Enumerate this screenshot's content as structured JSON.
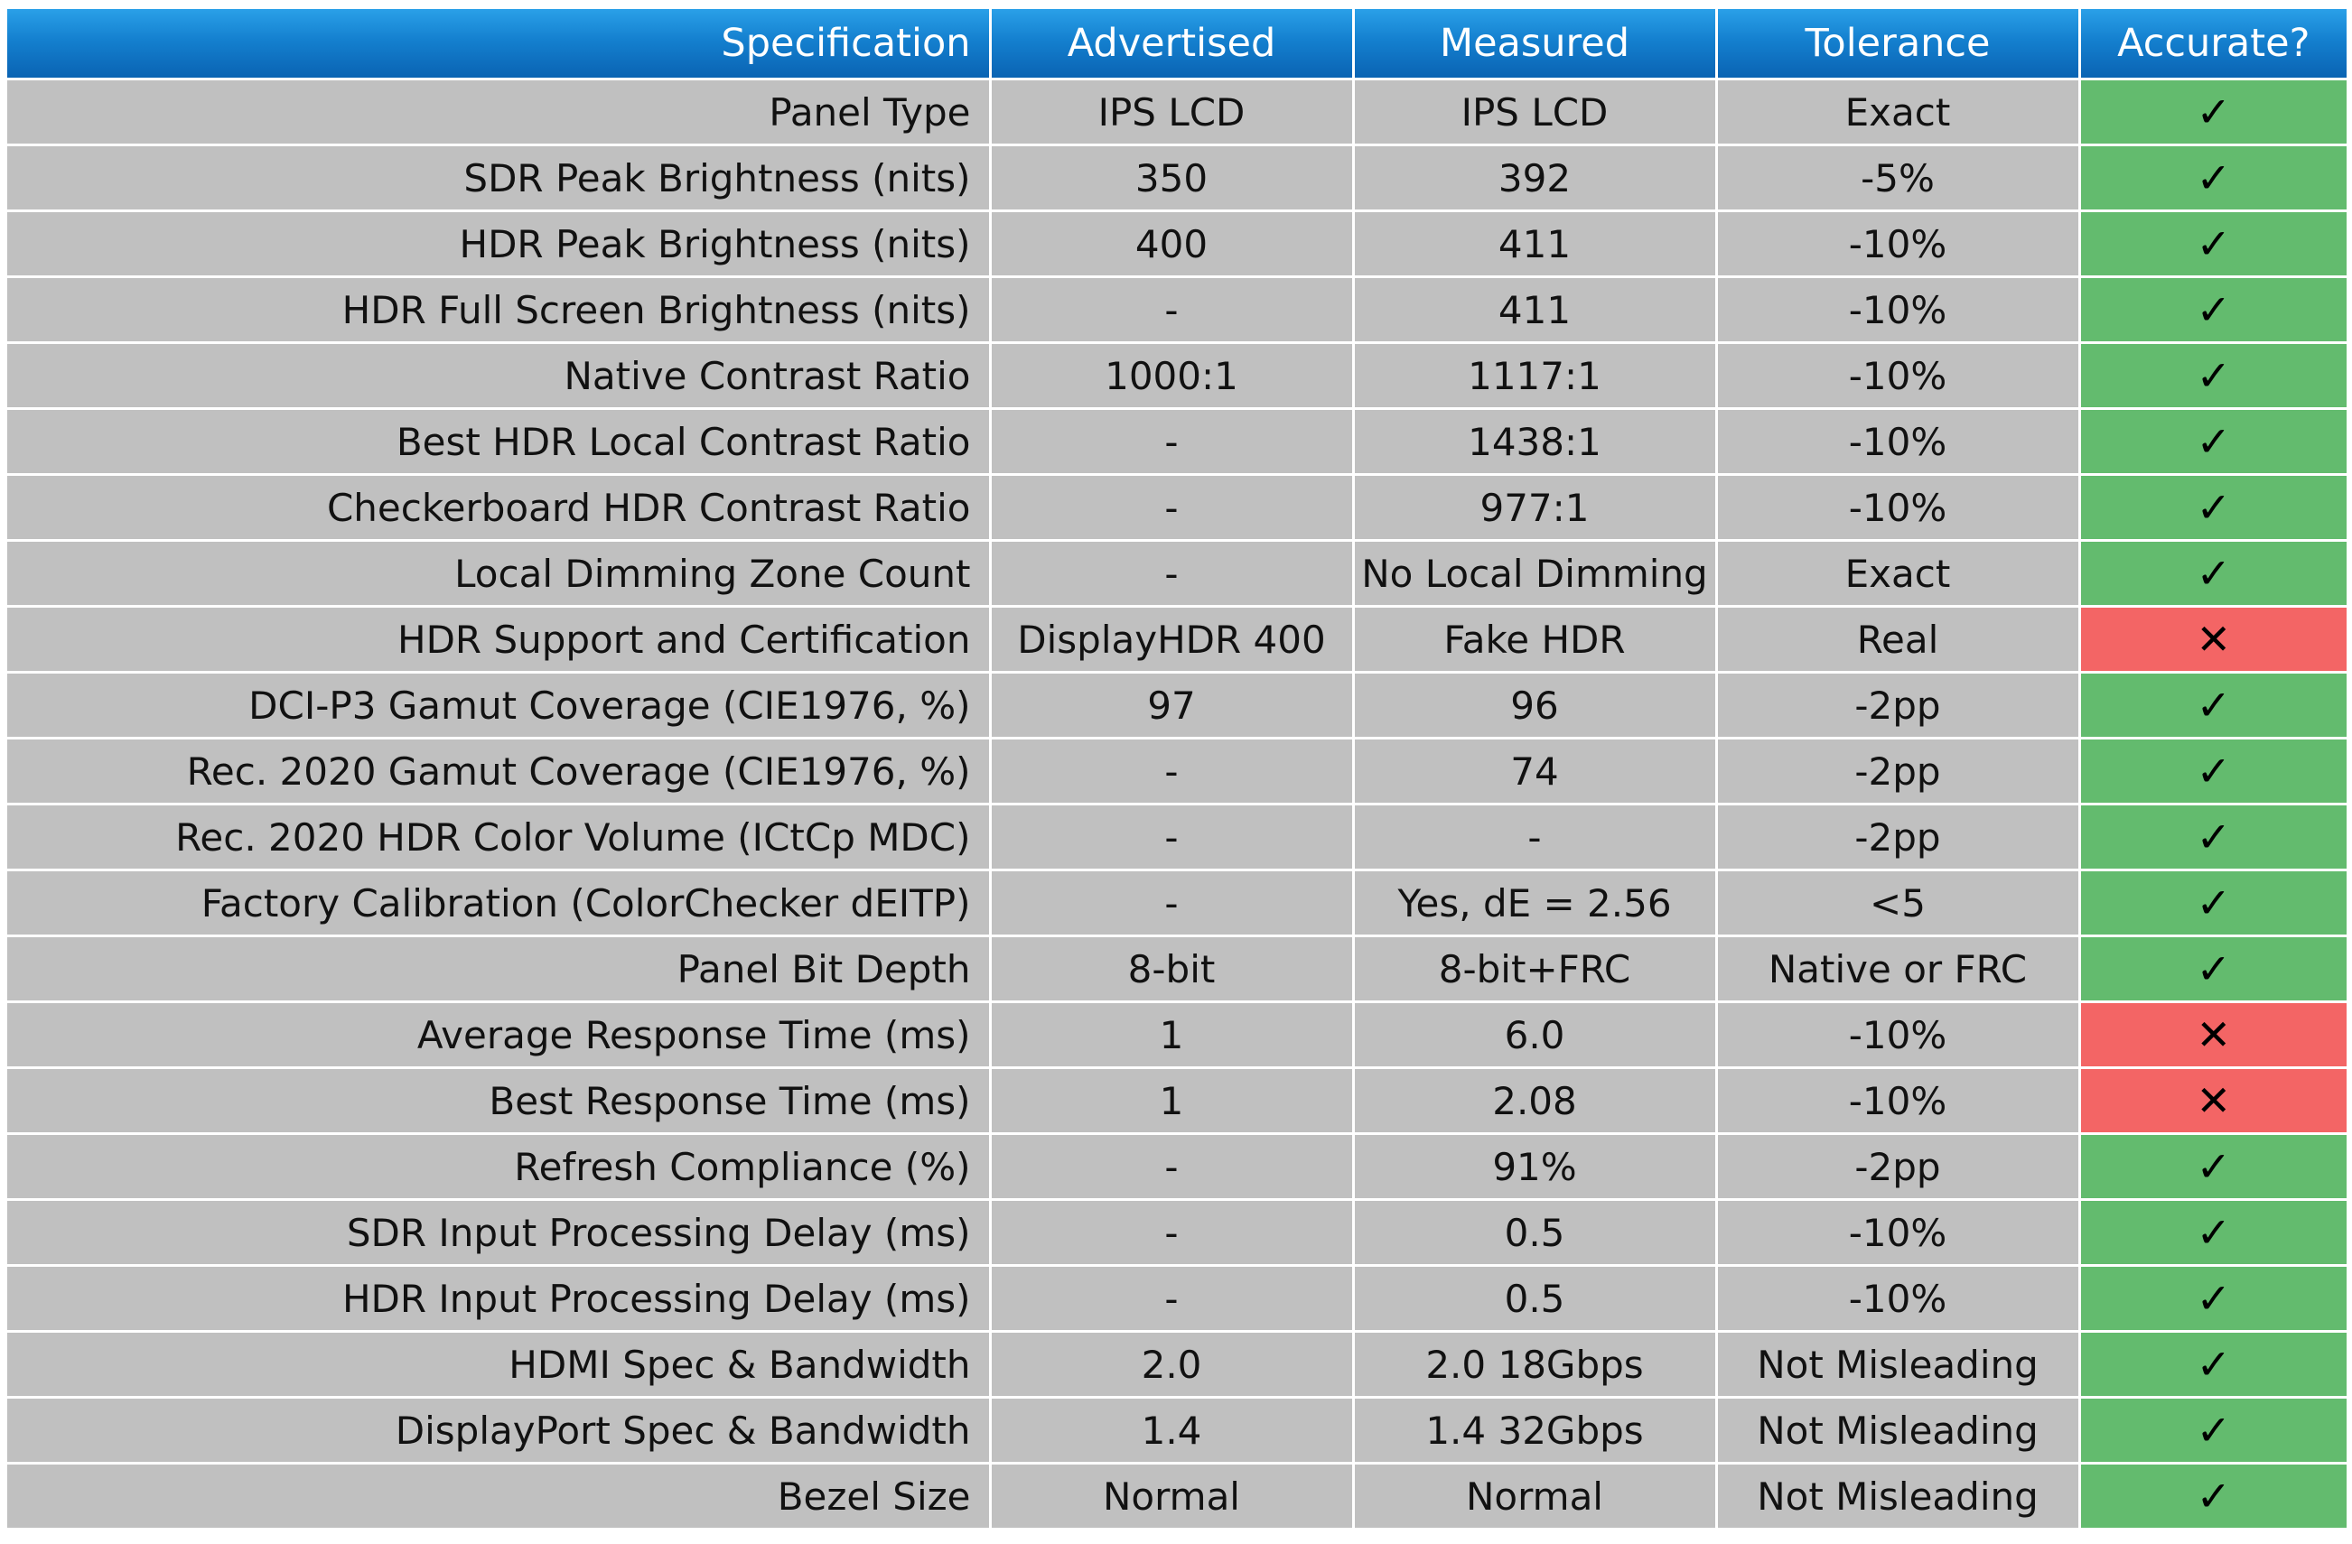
{
  "columns": {
    "spec": "Specification",
    "advertised": "Advertised",
    "measured": "Measured",
    "tolerance": "Tolerance",
    "accurate": "Accurate?"
  },
  "status_symbols": {
    "pass": "✓",
    "fail": "✕"
  },
  "status_colors": {
    "pass": "#63bb6e",
    "fail": "#f36565",
    "header": "#1480cf",
    "row": "#c0c0c0"
  },
  "rows": [
    {
      "spec": "Panel Type",
      "advertised": "IPS LCD",
      "measured": "IPS LCD",
      "tolerance": "Exact",
      "accurate": "pass"
    },
    {
      "spec": "SDR Peak Brightness (nits)",
      "advertised": "350",
      "measured": "392",
      "tolerance": "-5%",
      "accurate": "pass"
    },
    {
      "spec": "HDR Peak Brightness (nits)",
      "advertised": "400",
      "measured": "411",
      "tolerance": "-10%",
      "accurate": "pass"
    },
    {
      "spec": "HDR Full Screen Brightness (nits)",
      "advertised": "-",
      "measured": "411",
      "tolerance": "-10%",
      "accurate": "pass"
    },
    {
      "spec": "Native Contrast Ratio",
      "advertised": "1000:1",
      "measured": "1117:1",
      "tolerance": "-10%",
      "accurate": "pass"
    },
    {
      "spec": "Best HDR Local Contrast Ratio",
      "advertised": "-",
      "measured": "1438:1",
      "tolerance": "-10%",
      "accurate": "pass"
    },
    {
      "spec": "Checkerboard HDR Contrast Ratio",
      "advertised": "-",
      "measured": "977:1",
      "tolerance": "-10%",
      "accurate": "pass"
    },
    {
      "spec": "Local Dimming Zone Count",
      "advertised": "-",
      "measured": "No Local Dimming",
      "tolerance": "Exact",
      "accurate": "pass"
    },
    {
      "spec": "HDR Support and Certification",
      "advertised": "DisplayHDR 400",
      "measured": "Fake HDR",
      "tolerance": "Real",
      "accurate": "fail"
    },
    {
      "spec": "DCI-P3 Gamut Coverage (CIE1976, %)",
      "advertised": "97",
      "measured": "96",
      "tolerance": "-2pp",
      "accurate": "pass"
    },
    {
      "spec": "Rec. 2020 Gamut Coverage (CIE1976, %)",
      "advertised": "-",
      "measured": "74",
      "tolerance": "-2pp",
      "accurate": "pass"
    },
    {
      "spec": "Rec. 2020 HDR Color Volume (ICtCp MDC)",
      "advertised": "-",
      "measured": "-",
      "tolerance": "-2pp",
      "accurate": "pass"
    },
    {
      "spec": "Factory Calibration (ColorChecker dEITP)",
      "advertised": "-",
      "measured": "Yes, dE = 2.56",
      "tolerance": "<5",
      "accurate": "pass"
    },
    {
      "spec": "Panel Bit Depth",
      "advertised": "8-bit",
      "measured": "8-bit+FRC",
      "tolerance": "Native or FRC",
      "accurate": "pass"
    },
    {
      "spec": "Average Response Time (ms)",
      "advertised": "1",
      "measured": "6.0",
      "tolerance": "-10%",
      "accurate": "fail"
    },
    {
      "spec": "Best Response Time (ms)",
      "advertised": "1",
      "measured": "2.08",
      "tolerance": "-10%",
      "accurate": "fail"
    },
    {
      "spec": "Refresh Compliance (%)",
      "advertised": "-",
      "measured": "91%",
      "tolerance": "-2pp",
      "accurate": "pass"
    },
    {
      "spec": "SDR Input Processing Delay (ms)",
      "advertised": "-",
      "measured": "0.5",
      "tolerance": "-10%",
      "accurate": "pass"
    },
    {
      "spec": "HDR Input Processing Delay (ms)",
      "advertised": "-",
      "measured": "0.5",
      "tolerance": "-10%",
      "accurate": "pass"
    },
    {
      "spec": "HDMI Spec & Bandwidth",
      "advertised": "2.0",
      "measured": "2.0 18Gbps",
      "tolerance": "Not Misleading",
      "accurate": "pass"
    },
    {
      "spec": "DisplayPort Spec & Bandwidth",
      "advertised": "1.4",
      "measured": "1.4 32Gbps",
      "tolerance": "Not Misleading",
      "accurate": "pass"
    },
    {
      "spec": "Bezel Size",
      "advertised": "Normal",
      "measured": "Normal",
      "tolerance": "Not Misleading",
      "accurate": "pass"
    }
  ]
}
